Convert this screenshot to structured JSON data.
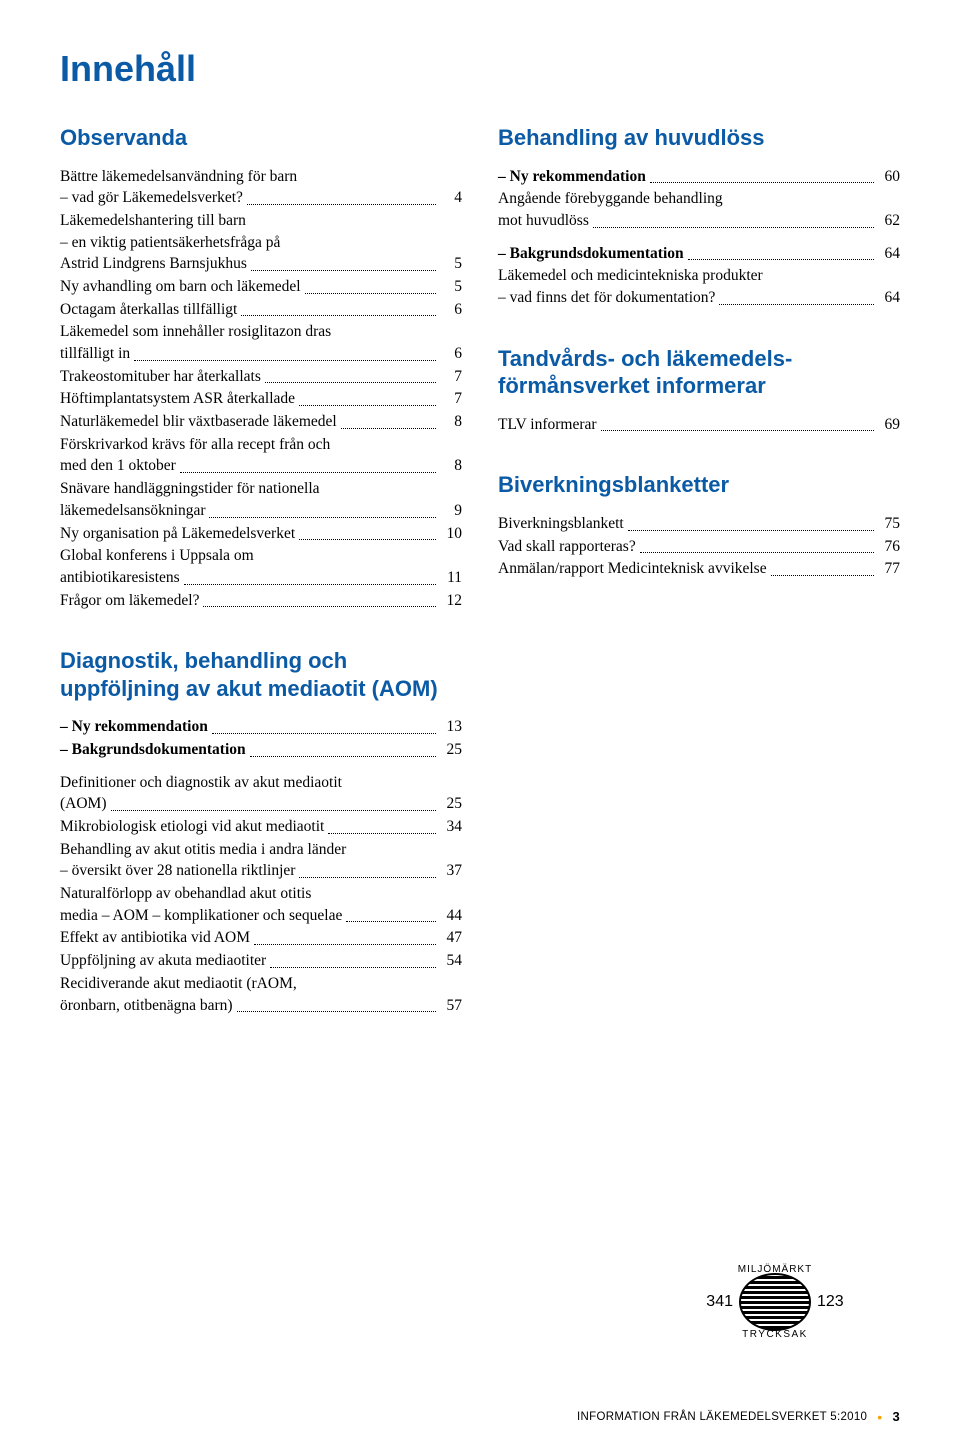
{
  "page": {
    "title": "Innehåll",
    "footer_text": "INFORMATION FRÅN LÄKEMEDELSVERKET 5:2010",
    "footer_page": "3"
  },
  "eco": {
    "top": "MILJÖMÄRKT",
    "left_num": "341",
    "right_num": "123",
    "bottom": "TRYCKSAK"
  },
  "left": {
    "sections": [
      {
        "heading": "Observanda",
        "entries": [
          {
            "lines": [
              "Bättre läkemedelsanvändning för barn",
              "– vad gör Läkemedelsverket?"
            ],
            "page": "4"
          },
          {
            "lines": [
              "Läkemedelshantering till barn",
              "– en viktig patientsäkerhetsfråga på",
              "Astrid Lindgrens Barnsjukhus"
            ],
            "page": "5"
          },
          {
            "lines": [
              "Ny avhandling om barn och läkemedel"
            ],
            "page": "5"
          },
          {
            "lines": [
              "Octagam återkallas tillfälligt"
            ],
            "page": "6"
          },
          {
            "lines": [
              "Läkemedel som innehåller rosiglitazon dras",
              "tillfälligt in"
            ],
            "page": "6"
          },
          {
            "lines": [
              "Trakeostomituber har återkallats"
            ],
            "page": "7"
          },
          {
            "lines": [
              "Höftimplantatsystem ASR återkallade"
            ],
            "page": "7"
          },
          {
            "lines": [
              "Naturläkemedel blir växtbaserade läkemedel"
            ],
            "page": "8"
          },
          {
            "lines": [
              "Förskrivarkod krävs för alla recept från och",
              "med den 1 oktober"
            ],
            "page": "8"
          },
          {
            "lines": [
              "Snävare handläggningstider för nationella",
              "läkemedelsansökningar"
            ],
            "page": "9"
          },
          {
            "lines": [
              "Ny organisation på Läkemedelsverket"
            ],
            "page": "10"
          },
          {
            "lines": [
              "Global konferens i Uppsala om",
              "antibiotikaresistens"
            ],
            "page": "11"
          },
          {
            "lines": [
              "Frågor om läkemedel?"
            ],
            "page": "12"
          }
        ]
      },
      {
        "heading": "Diagnostik, behandling och uppföljning av akut mediaotit (AOM)",
        "entries": [
          {
            "lines": [
              "– Ny rekommendation"
            ],
            "page": "13",
            "bold": true
          },
          {
            "lines": [
              "– Bakgrundsdokumentation"
            ],
            "page": "25",
            "bold": true
          },
          {
            "spacer": true
          },
          {
            "lines": [
              "Definitioner och diagnostik av akut mediaotit",
              "(AOM)"
            ],
            "page": "25"
          },
          {
            "lines": [
              "Mikrobiologisk etiologi vid akut mediaotit"
            ],
            "page": "34"
          },
          {
            "lines": [
              "Behandling av akut otitis media i andra länder",
              "– översikt över 28 nationella riktlinjer"
            ],
            "page": "37"
          },
          {
            "lines": [
              "Naturalförlopp av obehandlad akut otitis",
              "media – AOM – komplikationer och sequelae"
            ],
            "page": "44"
          },
          {
            "lines": [
              "Effekt av antibiotika vid AOM"
            ],
            "page": "47"
          },
          {
            "lines": [
              "Uppföljning av akuta mediaotiter"
            ],
            "page": "54"
          },
          {
            "lines": [
              "Recidiverande akut mediaotit (rAOM,",
              "öronbarn, otitbenägna barn)"
            ],
            "page": "57"
          }
        ]
      }
    ]
  },
  "right": {
    "sections": [
      {
        "heading": "Behandling av huvudlöss",
        "entries": [
          {
            "lines": [
              "– Ny rekommendation"
            ],
            "page": "60",
            "bold": true
          },
          {
            "lines": [
              "Angående förebyggande behandling",
              "mot huvudlöss"
            ],
            "page": "62"
          },
          {
            "spacer": true
          },
          {
            "lines": [
              "– Bakgrundsdokumentation"
            ],
            "page": "64",
            "bold": true
          },
          {
            "lines": [
              "Läkemedel och medicintekniska produkter",
              "– vad finns det för dokumentation?"
            ],
            "page": "64"
          }
        ]
      },
      {
        "heading": "Tandvårds- och läkemedels­förmånsverket informerar",
        "entries": [
          {
            "lines": [
              "TLV informerar"
            ],
            "page": "69"
          }
        ]
      },
      {
        "heading": "Biverkningsblanketter",
        "entries": [
          {
            "lines": [
              "Biverkningsblankett"
            ],
            "page": "75"
          },
          {
            "lines": [
              "Vad skall rapporteras?"
            ],
            "page": "76"
          },
          {
            "lines": [
              "Anmälan/rapport Medicinteknisk avvikelse"
            ],
            "page": "77"
          }
        ]
      }
    ]
  }
}
